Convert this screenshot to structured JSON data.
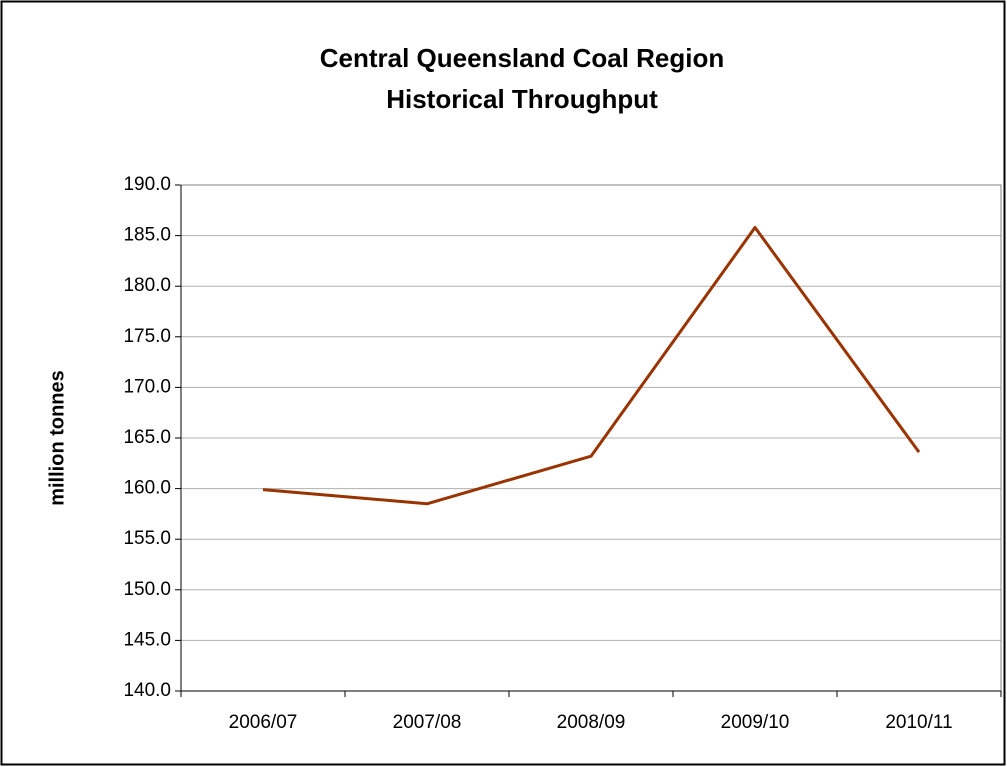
{
  "chart_data": {
    "type": "line",
    "title": [
      "Central Queensland Coal Region",
      "Historical Throughput"
    ],
    "y_label": "million tonnes",
    "categories": [
      "2006/07",
      "2007/08",
      "2008/09",
      "2009/10",
      "2010/11"
    ],
    "series": [
      {
        "color": "#993300",
        "values": [
          159.9,
          158.5,
          163.2,
          185.8,
          163.6
        ]
      }
    ],
    "ylim": [
      140,
      190
    ],
    "yticks": [
      {
        "value": 140,
        "label": "140.0"
      },
      {
        "value": 145,
        "label": "145.0"
      },
      {
        "value": 150,
        "label": "150.0"
      },
      {
        "value": 155,
        "label": "155.0"
      },
      {
        "value": 160,
        "label": "160.0"
      },
      {
        "value": 165,
        "label": "165.0"
      },
      {
        "value": 170,
        "label": "170.0"
      },
      {
        "value": 175,
        "label": "175.0"
      },
      {
        "value": 180,
        "label": "180.0"
      },
      {
        "value": 185,
        "label": "185.0"
      },
      {
        "value": 190,
        "label": "190.0"
      }
    ],
    "grid": true
  }
}
